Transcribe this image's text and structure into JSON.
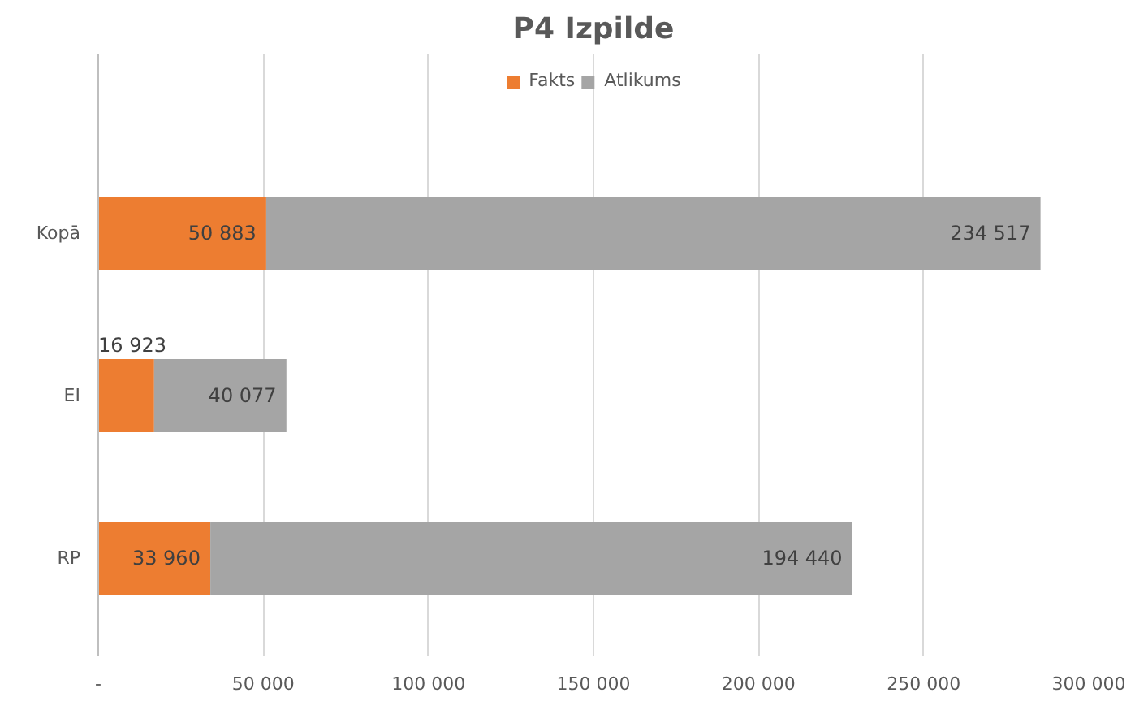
{
  "chart_data": {
    "type": "bar",
    "orientation": "horizontal",
    "stacked": true,
    "title": "P4 Izpilde",
    "categories": [
      "Kopā",
      "EI",
      "RP"
    ],
    "series": [
      {
        "name": "Fakts",
        "color": "#ed7d31",
        "values": [
          50883,
          16923,
          33960
        ],
        "value_labels": [
          "50 883",
          "16 923",
          "33 960"
        ]
      },
      {
        "name": "Atlikums",
        "color": "#a5a5a5",
        "values": [
          234517,
          40077,
          194440
        ],
        "value_labels": [
          "234 517",
          "40 077",
          "194 440"
        ]
      }
    ],
    "xlim": [
      0,
      300000
    ],
    "xticks": [
      {
        "value": 0,
        "label": "-"
      },
      {
        "value": 50000,
        "label": "50 000"
      },
      {
        "value": 100000,
        "label": "100 000"
      },
      {
        "value": 150000,
        "label": "150 000"
      },
      {
        "value": 200000,
        "label": "200 000"
      },
      {
        "value": 250000,
        "label": "250 000"
      },
      {
        "value": 300000,
        "label": "300 000"
      }
    ],
    "grid": "x",
    "legend": "top"
  }
}
